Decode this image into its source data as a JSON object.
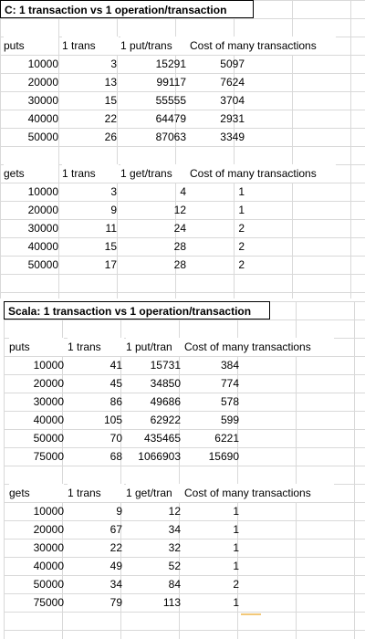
{
  "c_section": {
    "title": "C:  1 transaction vs 1 operation/transaction",
    "puts": {
      "headers": [
        "puts",
        "1 trans",
        "1 put/trans",
        "Cost of many transactions"
      ],
      "rows": [
        [
          "10000",
          "3",
          "15291",
          "5097"
        ],
        [
          "20000",
          "13",
          "99117",
          "7624"
        ],
        [
          "30000",
          "15",
          "55555",
          "3704"
        ],
        [
          "40000",
          "22",
          "64479",
          "2931"
        ],
        [
          "50000",
          "26",
          "87063",
          "3349"
        ]
      ]
    },
    "gets": {
      "headers": [
        "gets",
        "1 trans",
        "1 get/trans",
        "Cost of many transactions"
      ],
      "rows": [
        [
          "10000",
          "3",
          "4",
          "1"
        ],
        [
          "20000",
          "9",
          "12",
          "1"
        ],
        [
          "30000",
          "11",
          "24",
          "2"
        ],
        [
          "40000",
          "15",
          "28",
          "2"
        ],
        [
          "50000",
          "17",
          "28",
          "2"
        ]
      ]
    }
  },
  "scala_section": {
    "title": "Scala:  1 transaction vs 1 operation/transaction",
    "puts": {
      "headers": [
        "puts",
        "1 trans",
        "1 put/tran",
        "Cost of many transactions"
      ],
      "rows": [
        [
          "10000",
          "41",
          "15731",
          "384"
        ],
        [
          "20000",
          "45",
          "34850",
          "774"
        ],
        [
          "30000",
          "86",
          "49686",
          "578"
        ],
        [
          "40000",
          "105",
          "62922",
          "599"
        ],
        [
          "50000",
          "70",
          "435465",
          "6221"
        ],
        [
          "75000",
          "68",
          "1066903",
          "15690"
        ]
      ]
    },
    "gets": {
      "headers": [
        "gets",
        "1 trans",
        "1 get/tran",
        "Cost of many transactions"
      ],
      "rows": [
        [
          "10000",
          "9",
          "12",
          "1"
        ],
        [
          "20000",
          "67",
          "34",
          "1"
        ],
        [
          "30000",
          "22",
          "32",
          "1"
        ],
        [
          "40000",
          "49",
          "52",
          "1"
        ],
        [
          "50000",
          "34",
          "84",
          "2"
        ],
        [
          "75000",
          "79",
          "113",
          "1"
        ]
      ]
    }
  }
}
